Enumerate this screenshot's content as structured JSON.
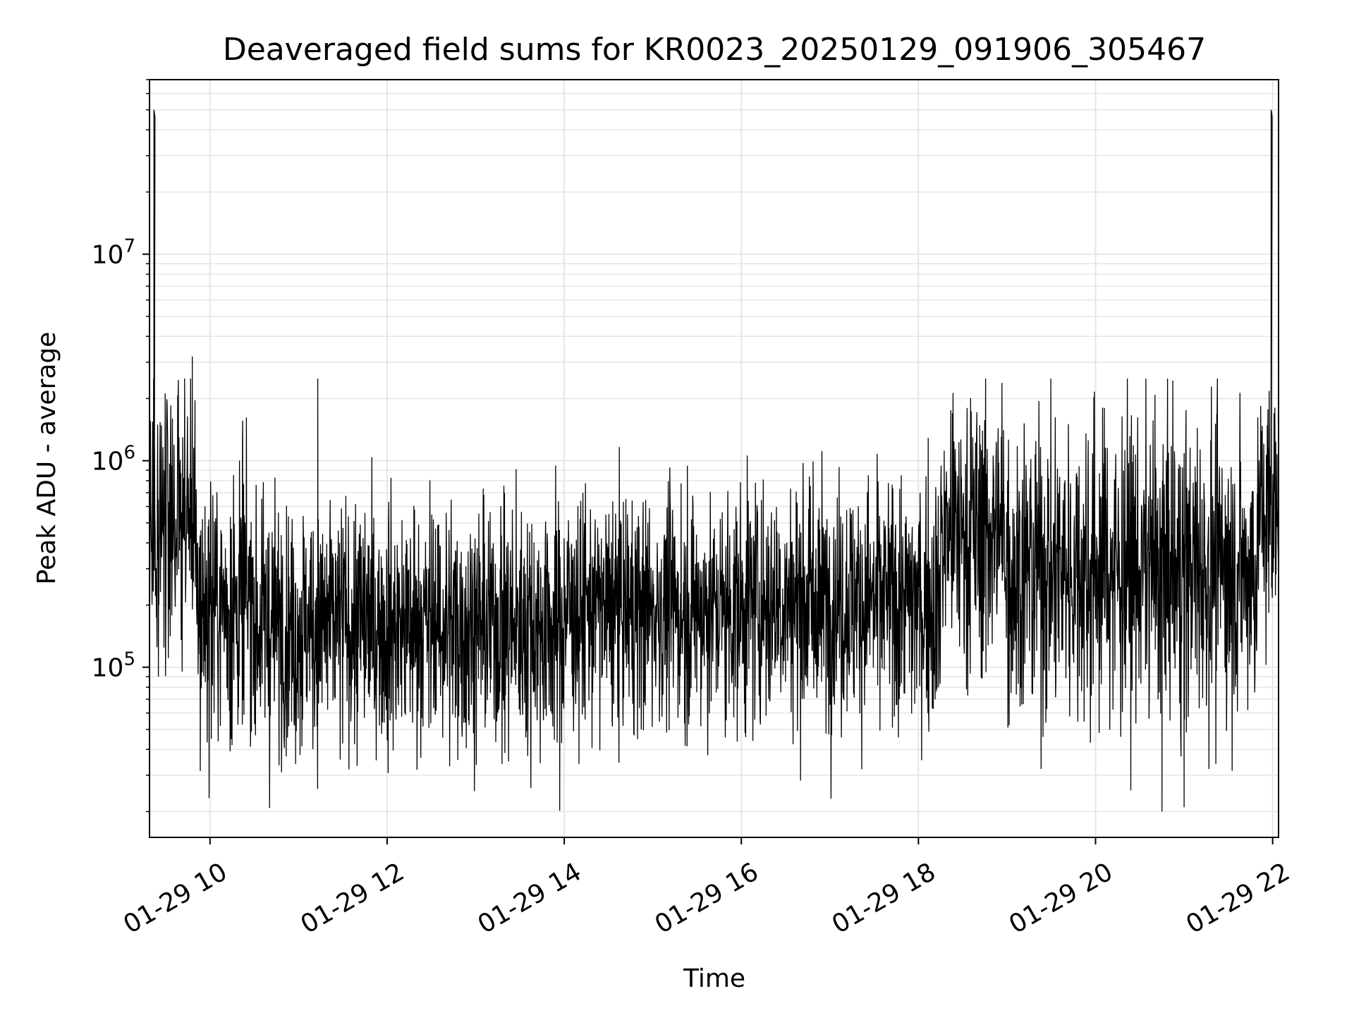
{
  "chart_data": {
    "type": "line",
    "title": "Deaveraged field sums for KR0023_20250129_091906_305467",
    "xlabel": "Time",
    "ylabel": "Peak ADU - average",
    "yscale": "log",
    "ylim": [
      15000,
      70000000
    ],
    "xlim": [
      "01-29 09:19",
      "01-29 22:04"
    ],
    "x_ticks": [
      {
        "value": "01-29 10:00",
        "label": "01-29 10"
      },
      {
        "value": "01-29 12:00",
        "label": "01-29 12"
      },
      {
        "value": "01-29 14:00",
        "label": "01-29 14"
      },
      {
        "value": "01-29 16:00",
        "label": "01-29 16"
      },
      {
        "value": "01-29 18:00",
        "label": "01-29 18"
      },
      {
        "value": "01-29 20:00",
        "label": "01-29 20"
      },
      {
        "value": "01-29 22:00",
        "label": "01-29 22"
      }
    ],
    "y_ticks": [
      {
        "value": 100000,
        "base": "10",
        "exp": "5"
      },
      {
        "value": 1000000,
        "base": "10",
        "exp": "6"
      },
      {
        "value": 10000000,
        "base": "10",
        "exp": "7"
      }
    ],
    "grid": true,
    "line_color": "#000000",
    "segments": [
      {
        "start": "01-29 09:19",
        "end": "01-29 09:50",
        "median": 550000,
        "spread": 0.35
      },
      {
        "start": "01-29 09:50",
        "end": "01-29 10:30",
        "median": 200000,
        "spread": 0.33
      },
      {
        "start": "01-29 10:30",
        "end": "01-29 14:00",
        "median": 160000,
        "spread": 0.3
      },
      {
        "start": "01-29 14:00",
        "end": "01-29 16:00",
        "median": 190000,
        "spread": 0.28
      },
      {
        "start": "01-29 16:00",
        "end": "01-29 18:15",
        "median": 210000,
        "spread": 0.3
      },
      {
        "start": "01-29 18:15",
        "end": "01-29 19:00",
        "median": 450000,
        "spread": 0.35
      },
      {
        "start": "01-29 19:00",
        "end": "01-29 21:50",
        "median": 300000,
        "spread": 0.37
      },
      {
        "start": "01-29 21:50",
        "end": "01-29 22:04",
        "median": 550000,
        "spread": 0.3
      }
    ],
    "spikes": [
      {
        "x": "01-29 09:22",
        "y": 50000000
      },
      {
        "x": "01-29 09:25",
        "y": 90000
      },
      {
        "x": "01-29 09:48",
        "y": 3200000
      },
      {
        "x": "01-29 10:22",
        "y": 1250000
      },
      {
        "x": "01-29 11:13",
        "y": 2500000
      },
      {
        "x": "01-29 10:58",
        "y": 34000
      },
      {
        "x": "01-29 14:10",
        "y": 34000
      },
      {
        "x": "01-29 18:23",
        "y": 1700000
      },
      {
        "x": "01-29 20:06",
        "y": 1800000
      },
      {
        "x": "01-29 20:45",
        "y": 20000
      },
      {
        "x": "01-29 21:00",
        "y": 21000
      },
      {
        "x": "01-29 21:59",
        "y": 50000000
      },
      {
        "x": "01-29 22:01",
        "y": 1700000
      }
    ]
  }
}
